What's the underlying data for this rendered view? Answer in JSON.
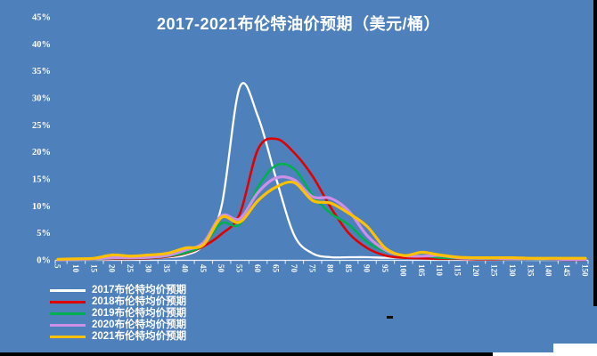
{
  "window": {
    "background_color": "#4E80BC",
    "text_color": "#FFFFFF"
  },
  "chart_data": {
    "type": "line",
    "title": "2017-2021布伦特油价预期（美元/桶）",
    "xlabel": "",
    "ylabel": "",
    "grid": false,
    "legend_position": "bottom-left",
    "ylim": [
      0,
      45
    ],
    "ytick_labels": [
      "0%",
      "5%",
      "10%",
      "15%",
      "20%",
      "25%",
      "30%",
      "35%",
      "40%",
      "45%"
    ],
    "categories": [
      5,
      10,
      15,
      20,
      25,
      30,
      35,
      40,
      45,
      50,
      55,
      60,
      65,
      70,
      75,
      80,
      85,
      90,
      95,
      100,
      105,
      110,
      115,
      120,
      125,
      130,
      135,
      140,
      145,
      150
    ],
    "series": [
      {
        "name": "2017布伦特均价预期",
        "color": "#FFFFFF",
        "values": [
          0.0,
          0.0,
          0.1,
          0.2,
          0.2,
          0.3,
          0.5,
          0.9,
          2.8,
          10.0,
          32.0,
          26.5,
          15.0,
          4.5,
          1.2,
          0.5,
          0.5,
          0.5,
          0.4,
          0.4,
          0.3,
          0.2,
          0.1,
          0.1,
          0.1,
          0.1,
          0.0,
          0.0,
          0.0,
          0.0
        ]
      },
      {
        "name": "2018布伦特均价预期",
        "color": "#E00000",
        "values": [
          0.0,
          0.1,
          0.1,
          0.2,
          0.2,
          0.3,
          0.6,
          1.2,
          2.5,
          4.8,
          8.5,
          20.5,
          22.4,
          19.8,
          15.5,
          9.7,
          4.9,
          2.2,
          0.8,
          0.4,
          0.3,
          0.2,
          0.2,
          0.1,
          0.1,
          0.1,
          0.1,
          0.1,
          0.0,
          0.0
        ]
      },
      {
        "name": "2019布伦特均价预期",
        "color": "#00B050",
        "values": [
          0.0,
          0.1,
          0.1,
          0.3,
          0.3,
          0.4,
          0.7,
          1.3,
          2.8,
          6.8,
          6.6,
          13.5,
          17.5,
          16.8,
          12.0,
          8.6,
          6.5,
          3.3,
          1.6,
          0.9,
          0.8,
          0.4,
          0.3,
          0.2,
          0.2,
          0.1,
          0.1,
          0.1,
          0.1,
          0.1
        ]
      },
      {
        "name": "2020布伦特均价预期",
        "color": "#CC90E8",
        "values": [
          0.0,
          0.1,
          0.2,
          0.4,
          0.4,
          0.5,
          0.8,
          1.8,
          3.2,
          8.2,
          7.6,
          12.5,
          15.2,
          14.8,
          11.7,
          11.4,
          9.0,
          4.5,
          1.8,
          0.8,
          0.7,
          0.8,
          0.4,
          0.3,
          0.3,
          0.2,
          0.2,
          0.2,
          0.1,
          0.1
        ]
      },
      {
        "name": "2021布伦特均价预期",
        "color": "#FFC000",
        "values": [
          0.1,
          0.2,
          0.3,
          0.9,
          0.7,
          0.9,
          1.2,
          2.2,
          2.8,
          7.9,
          7.0,
          11.0,
          13.5,
          14.3,
          11.0,
          10.5,
          8.6,
          6.2,
          2.2,
          0.8,
          1.4,
          0.9,
          0.5,
          0.4,
          0.4,
          0.4,
          0.3,
          0.3,
          0.3,
          0.3
        ]
      }
    ]
  }
}
